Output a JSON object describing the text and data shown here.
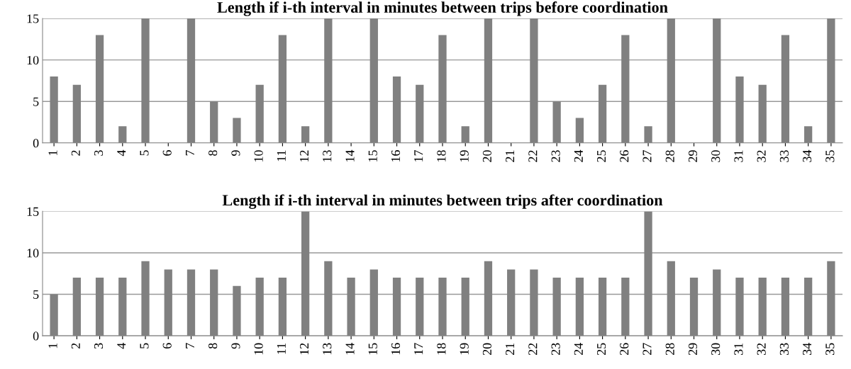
{
  "chart_data": [
    {
      "type": "bar",
      "title": "Length if i-th interval in minutes between trips before coordination",
      "categories": [
        "1",
        "2",
        "3",
        "4",
        "5",
        "6",
        "7",
        "8",
        "9",
        "10",
        "11",
        "12",
        "13",
        "14",
        "15",
        "16",
        "17",
        "18",
        "19",
        "20",
        "21",
        "22",
        "23",
        "24",
        "25",
        "26",
        "27",
        "28",
        "29",
        "30",
        "31",
        "32",
        "33",
        "34",
        "35"
      ],
      "values": [
        8,
        7,
        13,
        2,
        15,
        0,
        15,
        5,
        3,
        7,
        13,
        2,
        15,
        0,
        15,
        8,
        7,
        13,
        2,
        15,
        0,
        15,
        5,
        3,
        7,
        13,
        2,
        15,
        0,
        15,
        8,
        7,
        13,
        2,
        15
      ],
      "color": "#808080",
      "ylim": [
        0,
        15
      ],
      "yticks": [
        0,
        5,
        10,
        15
      ],
      "grid": "y"
    },
    {
      "type": "bar",
      "title": "Length if i-th interval in minutes between trips after coordination",
      "categories": [
        "1",
        "2",
        "3",
        "4",
        "5",
        "6",
        "7",
        "8",
        "9",
        "10",
        "11",
        "12",
        "13",
        "14",
        "15",
        "16",
        "17",
        "18",
        "19",
        "20",
        "21",
        "22",
        "23",
        "24",
        "25",
        "26",
        "27",
        "28",
        "29",
        "30",
        "31",
        "32",
        "33",
        "34",
        "35"
      ],
      "values": [
        5,
        7,
        7,
        7,
        9,
        8,
        8,
        8,
        6,
        7,
        7,
        15,
        9,
        7,
        8,
        7,
        7,
        7,
        7,
        9,
        8,
        8,
        7,
        7,
        7,
        7,
        15,
        9,
        7,
        8,
        7,
        7,
        7,
        7,
        9
      ],
      "color": "#808080",
      "ylim": [
        0,
        15
      ],
      "yticks": [
        0,
        5,
        10,
        15
      ],
      "grid": "y"
    }
  ]
}
